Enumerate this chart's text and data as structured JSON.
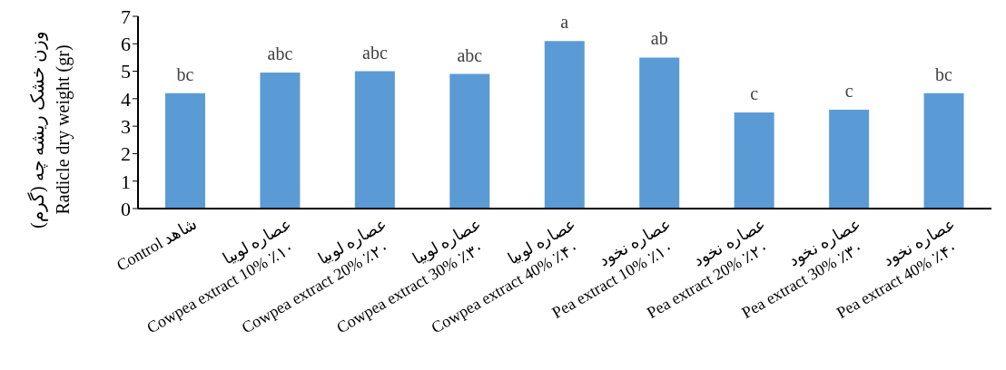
{
  "chart_data": {
    "type": "bar",
    "ylabel": "وزن خشک ریشه چه (گرم)\nRadicle dry weight (gr)",
    "categories": [
      "Control شاهد",
      "عصاره لوبیا\nCowpea extract 10% ٪۱۰",
      "عصاره لوبیا\nCowpea extract 20% ٪۲۰",
      "عصاره لوبیا\nCowpea extract 30% ٪۳۰",
      "عصاره لوبیا\nCowpea extract 40% ٪۴۰",
      "عصاره نخود\nPea extract 10% ٪۱۰",
      "عصاره نخود\nPea extract 20% ٪۲۰",
      "عصاره نخود\nPea extract 30% ٪۳۰",
      "عصاره نخود\nPea extract 40% ٪۴۰"
    ],
    "values": [
      4.2,
      4.95,
      5.0,
      4.9,
      6.1,
      5.5,
      3.5,
      3.6,
      4.2
    ],
    "value_labels": [
      "bc",
      "abc",
      "abc",
      "abc",
      "a",
      "ab",
      "c",
      "c",
      "bc"
    ],
    "color": "#5b9bd5",
    "ylim": [
      0,
      7
    ],
    "yticks": [
      0,
      1,
      2,
      3,
      4,
      5,
      6,
      7
    ],
    "grid": false,
    "legend": false
  }
}
